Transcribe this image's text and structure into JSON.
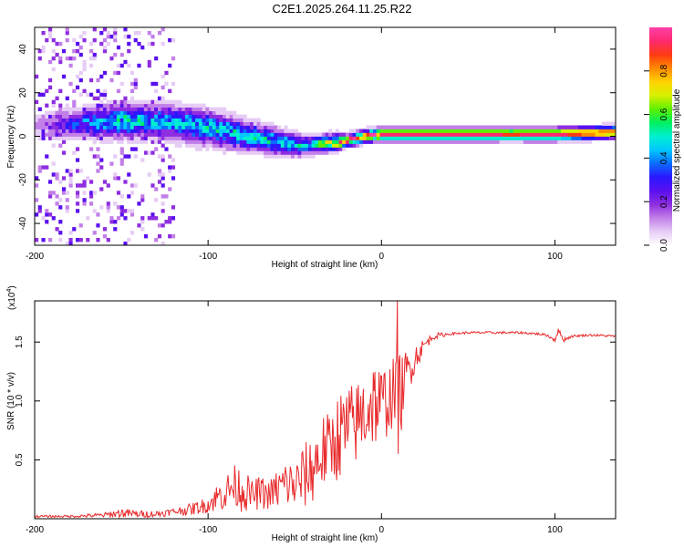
{
  "figure_title": "C2E1.2025.264.11.25.R22",
  "colors": {
    "snr_line": "#e8292b",
    "colormap": [
      "#ffffff",
      "#e6ccf5",
      "#c27fe8",
      "#8e2ee0",
      "#5a10f0",
      "#2a18ff",
      "#0a6cff",
      "#00c8ff",
      "#00f0d0",
      "#00f060",
      "#5ff000",
      "#d8f000",
      "#ffd200",
      "#ff8a00",
      "#ff3a14",
      "#ff2a6e",
      "#ff3fa8"
    ]
  },
  "chart_data": [
    {
      "type": "heatmap",
      "title": "C2E1.2025.264.11.25.R22",
      "xlabel": "Height of straight line (km)",
      "ylabel": "Frequency (Hz)",
      "xlim": [
        -200,
        135
      ],
      "ylim": [
        -50,
        50
      ],
      "x_ticks": [
        -200,
        -100,
        0,
        100
      ],
      "y_ticks": [
        -40,
        -20,
        0,
        20,
        40
      ],
      "colorbar": {
        "label": "Normalized spectral amplitude",
        "range": [
          0.0,
          1.0
        ],
        "ticks": [
          "0.0",
          "0.2",
          "0.4",
          "0.6",
          "0.8"
        ]
      },
      "ridge": {
        "x": [
          -200,
          -175,
          -150,
          -125,
          -100,
          -75,
          -50,
          -40,
          -30,
          -20,
          -10,
          0,
          25,
          50,
          75,
          100,
          135
        ],
        "freq": [
          5,
          6,
          7,
          7,
          4,
          0,
          -4,
          -4,
          -3,
          -2,
          0,
          1,
          1,
          1,
          1,
          1,
          2
        ],
        "peak_amplitude": [
          0.1,
          0.35,
          0.5,
          0.45,
          0.5,
          0.5,
          0.45,
          0.45,
          0.7,
          0.9,
          0.95,
          0.95,
          0.95,
          0.95,
          0.9,
          0.95,
          0.85
        ],
        "ridge_width_hz": [
          4,
          4,
          5,
          5,
          5,
          4,
          3,
          2,
          2,
          1,
          1,
          1,
          1,
          1,
          1,
          1,
          1
        ]
      },
      "noise_region": {
        "xlim": [
          -200,
          -120
        ],
        "note": "broadband scattered noise at all frequencies"
      }
    },
    {
      "type": "line",
      "title": "",
      "xlabel": "Height of straight line (km)",
      "ylabel": "SNR (10 * v/v)",
      "y_scale_label": "(x10",
      "y_scale_exp": "4",
      "xlim": [
        -200,
        135
      ],
      "ylim": [
        0,
        1.85
      ],
      "x_ticks": [
        -200,
        -100,
        0,
        100
      ],
      "y_ticks": [
        "0.5",
        "1.0",
        "1.5"
      ],
      "series": [
        {
          "name": "SNR",
          "x": [
            -200,
            -180,
            -160,
            -150,
            -140,
            -130,
            -120,
            -110,
            -100,
            -95,
            -90,
            -85,
            -80,
            -75,
            -70,
            -65,
            -60,
            -55,
            -50,
            -45,
            -40,
            -35,
            -30,
            -25,
            -20,
            -15,
            -10,
            -5,
            0,
            5,
            10,
            15,
            20,
            25,
            30,
            40,
            50,
            60,
            70,
            80,
            90,
            95,
            100,
            102,
            105,
            110,
            120,
            135
          ],
          "y": [
            0.02,
            0.02,
            0.03,
            0.05,
            0.04,
            0.04,
            0.06,
            0.08,
            0.12,
            0.18,
            0.22,
            0.28,
            0.25,
            0.2,
            0.22,
            0.2,
            0.25,
            0.3,
            0.28,
            0.35,
            0.42,
            0.55,
            0.6,
            0.7,
            0.75,
            0.8,
            0.9,
            1.0,
            0.95,
            1.05,
            1.0,
            1.25,
            1.38,
            1.48,
            1.55,
            1.57,
            1.58,
            1.58,
            1.58,
            1.58,
            1.57,
            1.56,
            1.52,
            1.6,
            1.52,
            1.55,
            1.56,
            1.55
          ],
          "noise_amplitude": [
            0.01,
            0.01,
            0.02,
            0.04,
            0.03,
            0.03,
            0.03,
            0.05,
            0.07,
            0.12,
            0.15,
            0.18,
            0.2,
            0.12,
            0.15,
            0.12,
            0.18,
            0.22,
            0.2,
            0.28,
            0.3,
            0.35,
            0.3,
            0.38,
            0.4,
            0.35,
            0.38,
            0.4,
            0.35,
            0.3,
            0.4,
            0.2,
            0.12,
            0.05,
            0.03,
            0.01,
            0.01,
            0.01,
            0.01,
            0.01,
            0.01,
            0.01,
            0.02,
            0.02,
            0.02,
            0.01,
            0.01,
            0.01
          ]
        }
      ]
    }
  ]
}
